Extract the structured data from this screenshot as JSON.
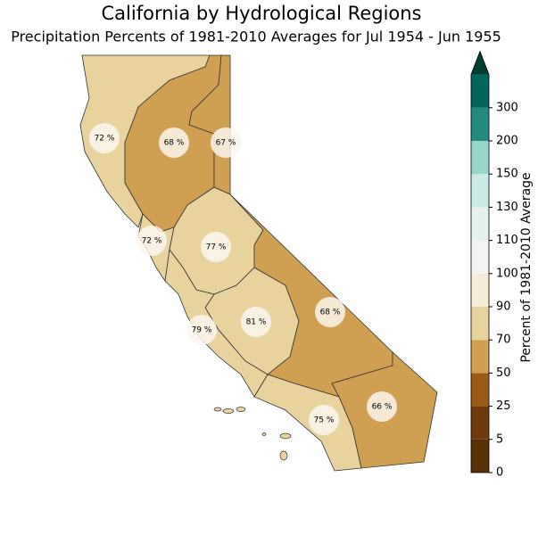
{
  "chart_data": {
    "type": "choropleth",
    "title": "California by Hydrological Regions",
    "subtitle": "Precipitation Percents of 1981-2010 Averages for Jul 1954 - Jun 1955",
    "values": [
      72,
      68,
      67,
      72,
      77,
      81,
      79,
      68,
      75,
      66
    ],
    "value_labels": [
      "72 %",
      "68 %",
      "67 %",
      "72 %",
      "77 %",
      "81 %",
      "79 %",
      "68 %",
      "75 %",
      "66 %"
    ],
    "colorbar": {
      "label": "Percent of 1981-2010 Average",
      "ticks": [
        0,
        5,
        25,
        50,
        70,
        90,
        100,
        110,
        130,
        150,
        200,
        300
      ],
      "colors": [
        "#573206",
        "#6e3c0c",
        "#9a5b16",
        "#cfa052",
        "#e8d39f",
        "#f6ecd8",
        "#f3f3f2",
        "#e5f1ee",
        "#c8ebe5",
        "#97d5cb",
        "#238a80",
        "#04655c"
      ],
      "extend_color": "#003c30"
    }
  }
}
